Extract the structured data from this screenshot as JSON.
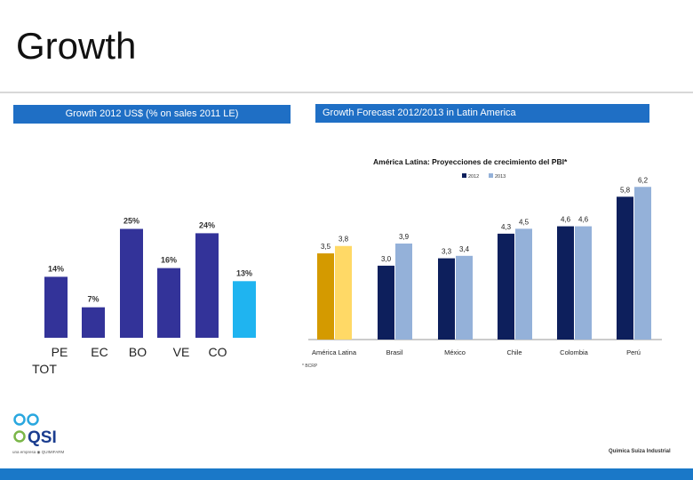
{
  "page": {
    "title": "Growth",
    "left_header": "Growth 2012 US$ (% on sales 2011 LE)",
    "right_header": "Growth Forecast 2012/2013 in Latin America",
    "company": "Quimica Suiza Industrial",
    "logo_text": "QSI",
    "logo_caption": "una empresa ◉ QUIMIFARM"
  },
  "chart_data": [
    {
      "type": "bar",
      "categories": [
        "PE",
        "EC",
        "BO",
        "VE",
        "CO",
        "TOT"
      ],
      "values": [
        14,
        7,
        25,
        16,
        24,
        13
      ],
      "value_labels": [
        "14%",
        "7%",
        "25%",
        "16%",
        "24%",
        "13%"
      ],
      "colors": [
        "#333399",
        "#333399",
        "#333399",
        "#333399",
        "#333399",
        "#1fb4f0"
      ],
      "ylim": [
        0,
        30
      ],
      "grid": false
    },
    {
      "type": "bar",
      "title": "América Latina: Proyecciones de crecimiento del PBI*",
      "categories": [
        "América Latina",
        "Brasil",
        "México",
        "Chile",
        "Colombia",
        "Perú"
      ],
      "series": [
        {
          "name": "2012",
          "values": [
            3.5,
            3.0,
            3.3,
            4.3,
            4.6,
            5.8
          ],
          "labels": [
            "3,5",
            "3,0",
            "3,3",
            "4,3",
            "4,6",
            "5,8"
          ]
        },
        {
          "name": "2013",
          "values": [
            3.8,
            3.9,
            3.4,
            4.5,
            4.6,
            6.2
          ],
          "labels": [
            "3,8",
            "3,9",
            "3,4",
            "4,5",
            "4,6",
            "6,2"
          ]
        }
      ],
      "colors": {
        "2012": "#0d1f5c",
        "2013": "#94b1d9",
        "highlight_2012": "#d49a00",
        "highlight_2013": "#ffd966"
      },
      "footnote": "* BCRP",
      "legend": "top-center",
      "ylim": [
        0,
        7
      ],
      "grid": false
    }
  ]
}
